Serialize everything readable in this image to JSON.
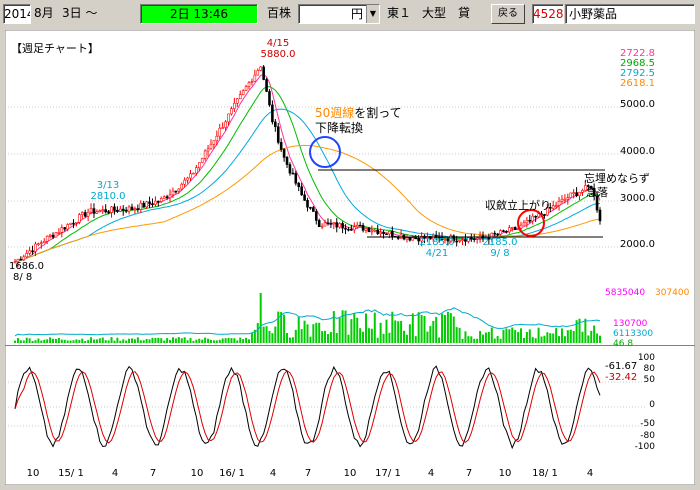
{
  "toolbar": {
    "date_year": "2014年",
    "date_month": "8月",
    "date_day": "3日 ～",
    "time_value": "2日 13:46",
    "unit": "百株",
    "currency": "円",
    "market": "東１",
    "size_class": "大型",
    "credit": "貸",
    "back_label": "戻る",
    "code": "4528",
    "company": "小野薬品"
  },
  "chart": {
    "title": "【週足チャート】",
    "price_axis": [
      "5000.0",
      "4000.0",
      "3000.0",
      "2000.0"
    ],
    "legend_values": [
      {
        "text": "2722.8",
        "color": "#ff3399"
      },
      {
        "text": "2968.5",
        "color": "#00aa00"
      },
      {
        "text": "2792.5",
        "color": "#00aacc"
      },
      {
        "text": "2618.1",
        "color": "#ff8800"
      }
    ],
    "annotations": {
      "high_date": "4/15",
      "high_price": "5880.0",
      "low_start_price": "1686.0",
      "low_start_date": "8/ 8",
      "early_date": "3/13",
      "early_price": "2810.0",
      "low1_price": "2185.0",
      "low1_date": "4/21",
      "low2_price": "2185.0",
      "low2_date": "9/ 8",
      "note_break_orange": "50週線",
      "note_break_rest": "を割って",
      "note_break_line2": "下降転換",
      "note_converge": "収斂立上がり",
      "note_drop_line1": "忘埋めならず",
      "note_drop_line2": "急落"
    },
    "volume_labels": {
      "volume_right_1": "5835040",
      "volume_right_2": "307400",
      "volume_right_3": "130700",
      "volume_right_4": "6113300",
      "volume_right_5": "46.8"
    },
    "oscillator": {
      "axis": [
        "100",
        "80",
        "50",
        "0",
        "-50",
        "-80",
        "-100"
      ],
      "value_black": "-61.67",
      "value_red": "-32.42"
    },
    "x_axis": [
      "10",
      "15/ 1",
      "4",
      "7",
      "10",
      "16/ 1",
      "4",
      "7",
      "10",
      "17/ 1",
      "4",
      "7",
      "10",
      "18/ 1",
      "4"
    ]
  },
  "colors": {
    "candle_up": "#ff0000",
    "candle_down": "#000000",
    "ma_short": "#00bb00",
    "ma_mid": "#00aadd",
    "ma_long": "#ff9900",
    "volume": "#00cc00",
    "circle_blue": "#2244ff",
    "circle_red": "#ff0000"
  }
}
